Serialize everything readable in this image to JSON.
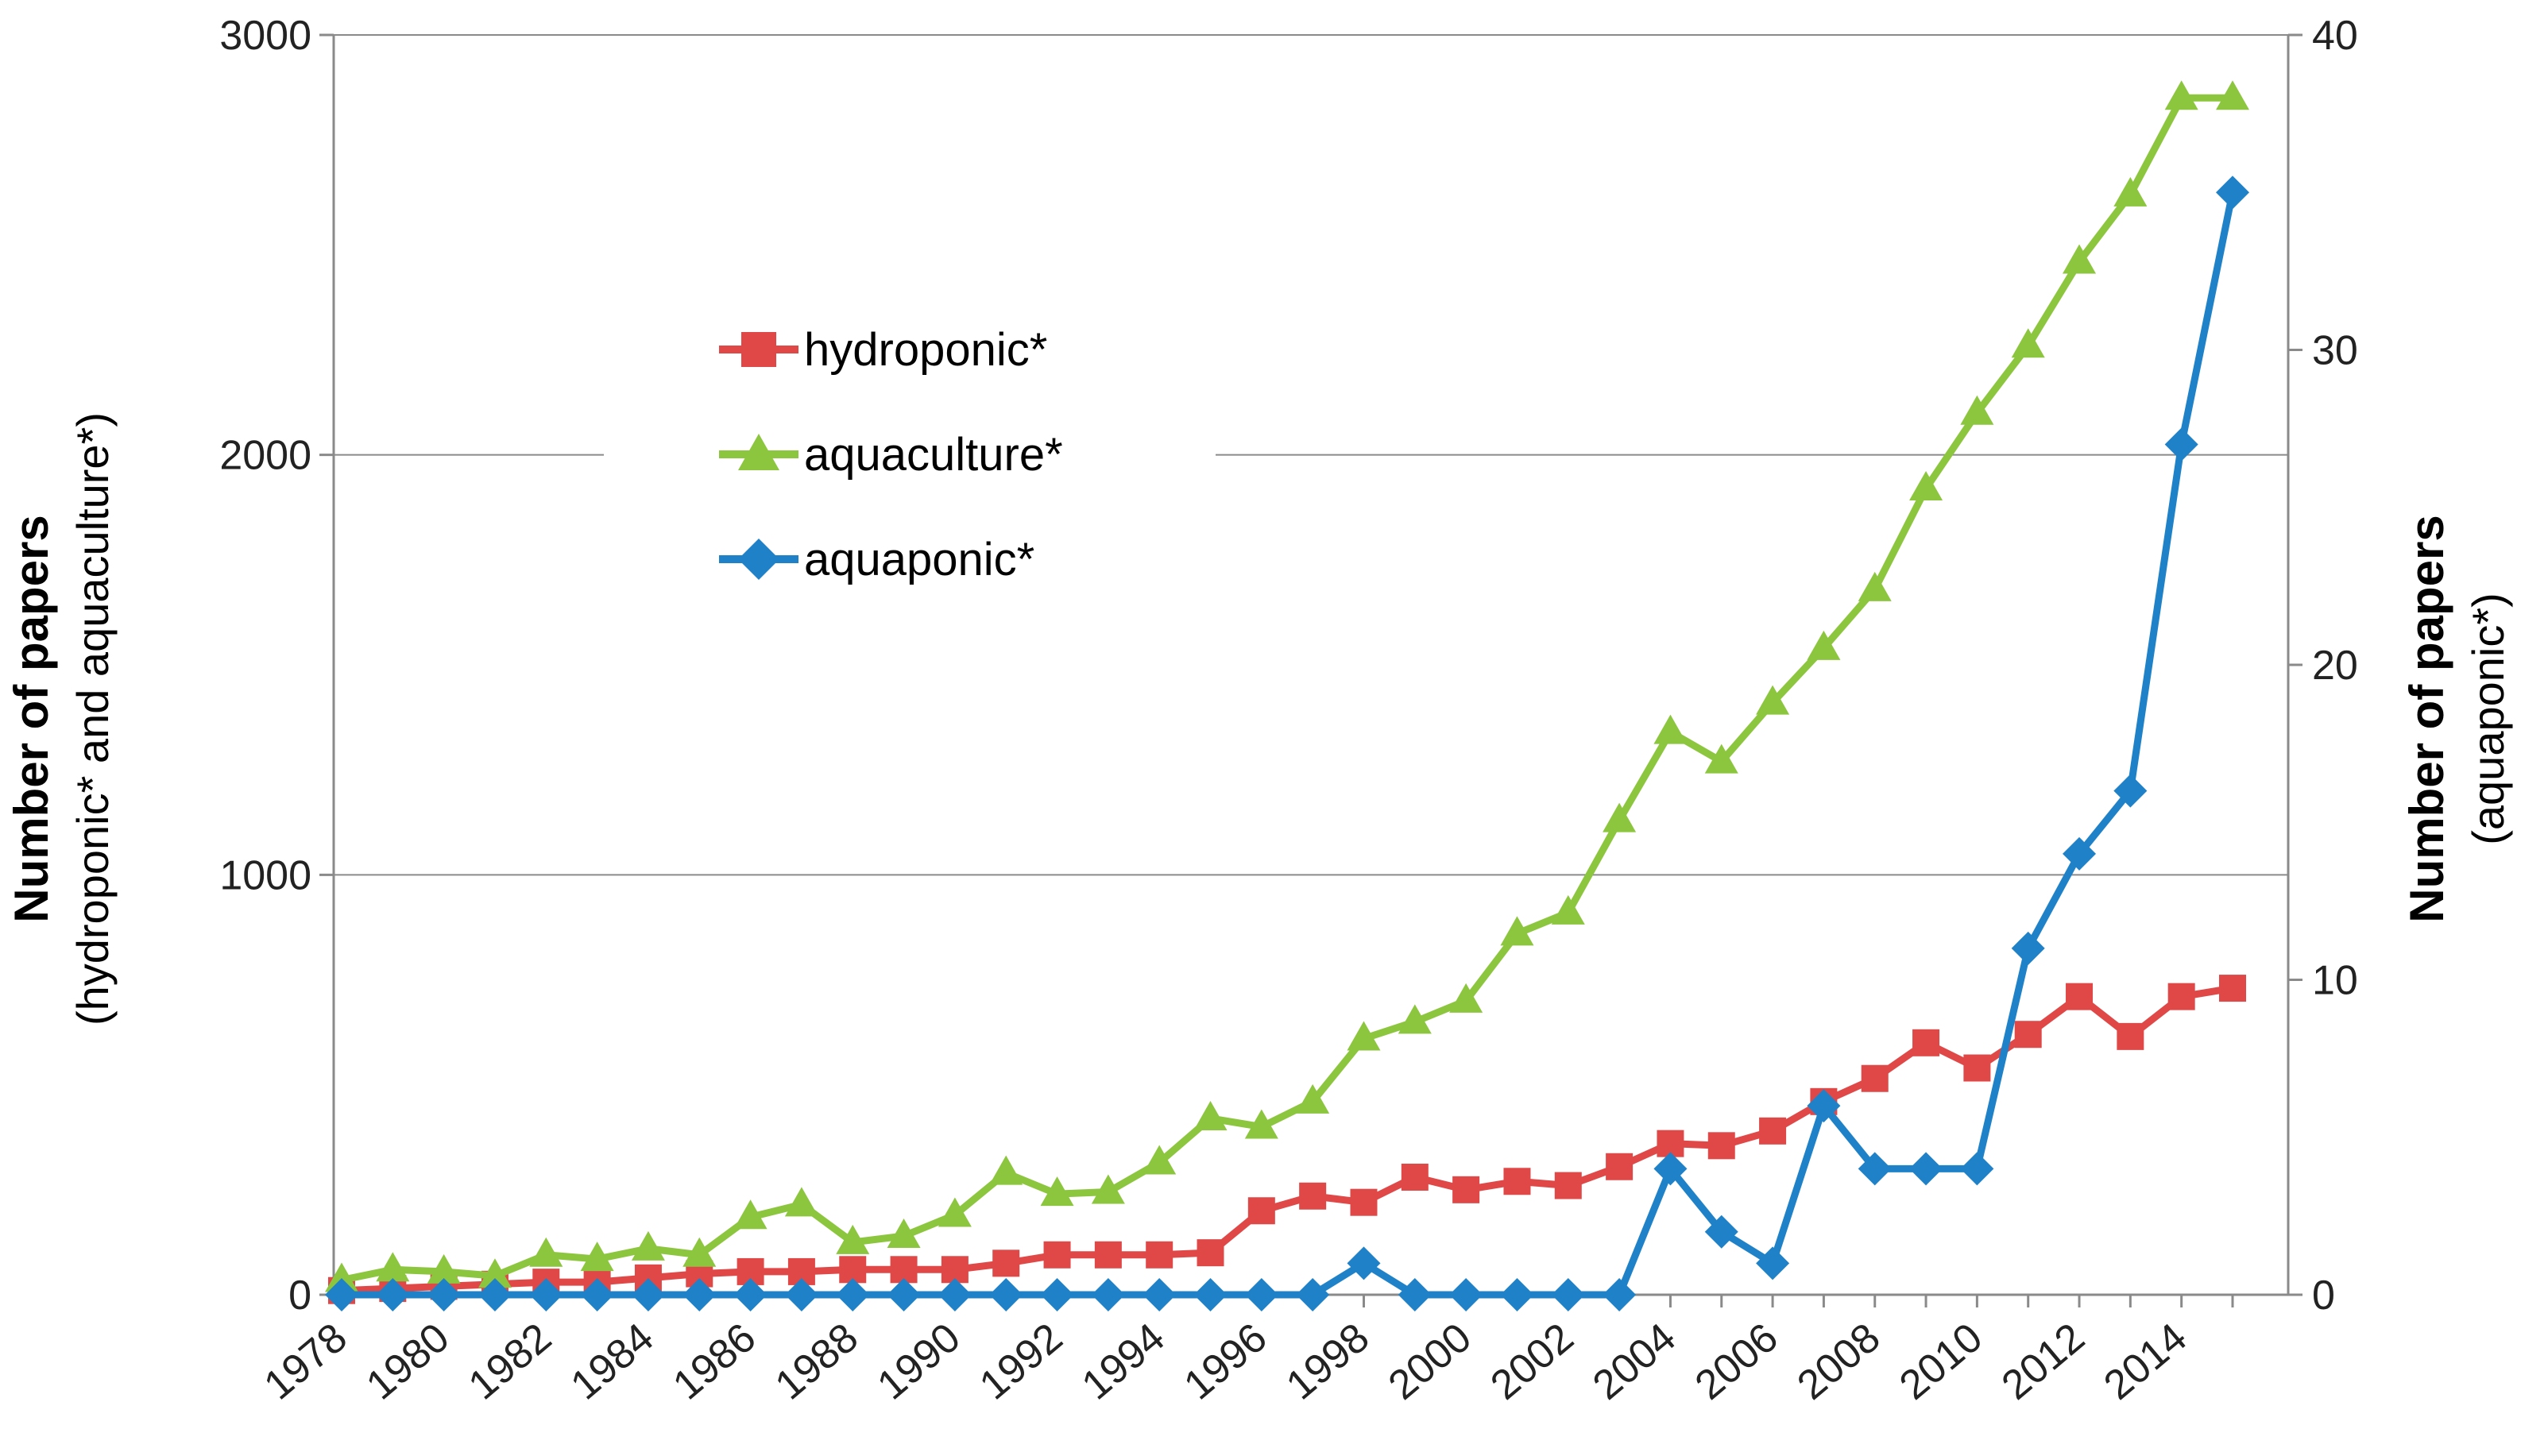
{
  "chart_data": {
    "type": "line",
    "title": "",
    "x": [
      1978,
      1979,
      1980,
      1981,
      1982,
      1983,
      1984,
      1985,
      1986,
      1987,
      1988,
      1989,
      1990,
      1991,
      1992,
      1993,
      1994,
      1995,
      1996,
      1997,
      1998,
      1999,
      2000,
      2001,
      2002,
      2003,
      2004,
      2005,
      2006,
      2007,
      2008,
      2009,
      2010,
      2011,
      2012,
      2013,
      2014,
      2015
    ],
    "x_tick_labels": [
      "1978",
      "1980",
      "1982",
      "1984",
      "1986",
      "1988",
      "1990",
      "1992",
      "1994",
      "1996",
      "1998",
      "2000",
      "2002",
      "2004",
      "2006",
      "2008",
      "2010",
      "2012",
      "2014"
    ],
    "ylabel_left": {
      "title": "Number of papers",
      "subtitle": "(hydroponic* and aquaculture*)"
    },
    "ylabel_right": {
      "title": "Number of papers",
      "subtitle": "(aquaponic*)"
    },
    "ylim_left": [
      0,
      3000
    ],
    "ylim_right": [
      0,
      40
    ],
    "y_ticks_left": [
      "0",
      "1000",
      "2000",
      "3000"
    ],
    "y_ticks_right": [
      "0",
      "10",
      "20",
      "30",
      "40"
    ],
    "grid": true,
    "legend_position": "upper-left-center",
    "series": [
      {
        "name": "hydroponic*",
        "axis": "left",
        "color": "#e04848",
        "marker": "square",
        "values": [
          10,
          15,
          20,
          25,
          30,
          30,
          40,
          50,
          55,
          55,
          60,
          60,
          60,
          75,
          95,
          95,
          95,
          100,
          200,
          235,
          220,
          280,
          250,
          270,
          260,
          305,
          360,
          355,
          390,
          460,
          515,
          600,
          540,
          620,
          710,
          615,
          710,
          730
        ]
      },
      {
        "name": "aquaculture*",
        "axis": "left",
        "color": "#8cc63e",
        "marker": "triangle",
        "values": [
          35,
          60,
          55,
          45,
          95,
          85,
          110,
          95,
          185,
          215,
          125,
          140,
          190,
          290,
          240,
          245,
          315,
          420,
          400,
          460,
          610,
          650,
          700,
          860,
          910,
          1130,
          1340,
          1270,
          1410,
          1540,
          1680,
          1920,
          2100,
          2260,
          2460,
          2620,
          2850,
          2850
        ]
      },
      {
        "name": "aquaponic*",
        "axis": "right",
        "color": "#1f82c8",
        "marker": "diamond",
        "values": [
          0,
          0,
          0,
          0,
          0,
          0,
          0,
          0,
          0,
          0,
          0,
          0,
          0,
          0,
          0,
          0,
          0,
          0,
          0,
          0,
          1,
          0,
          0,
          0,
          0,
          0,
          4,
          2,
          1,
          6,
          4,
          4,
          4,
          11,
          14,
          16,
          27,
          35
        ]
      }
    ]
  }
}
